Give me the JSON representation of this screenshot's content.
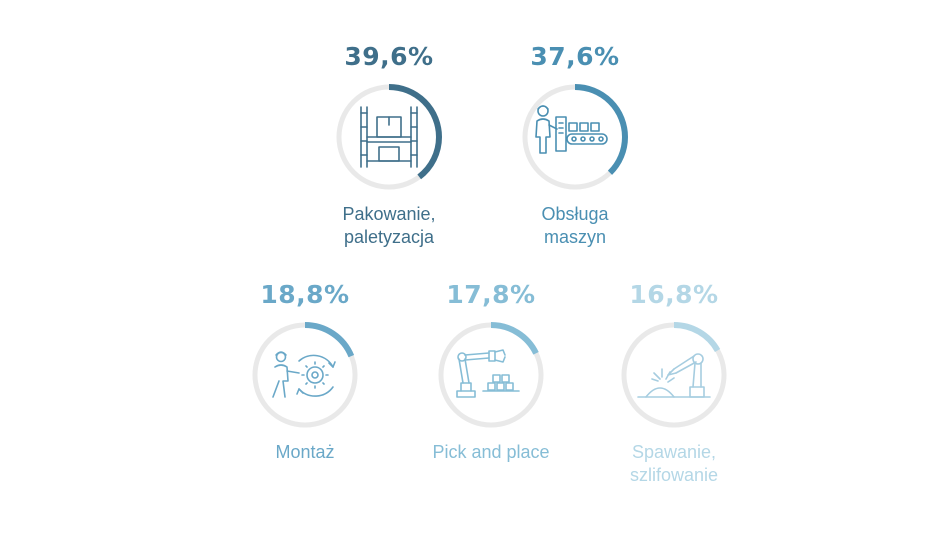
{
  "chart_data": {
    "type": "pie",
    "items": [
      {
        "value": 39.6,
        "value_label": "39,6%",
        "label_line1": "Pakowanie,",
        "label_line2": "paletyzacja",
        "color": "#3f6f8a",
        "icon": "pallet-rack-icon"
      },
      {
        "value": 37.6,
        "value_label": "37,6%",
        "label_line1": "Obsługa",
        "label_line2": "maszyn",
        "color": "#4a8fb2",
        "icon": "machine-operator-icon"
      },
      {
        "value": 18.8,
        "value_label": "18,8%",
        "label_line1": "Montaż",
        "label_line2": "",
        "color": "#6aa8c8",
        "icon": "assembly-worker-icon"
      },
      {
        "value": 17.8,
        "value_label": "17,8%",
        "label_line1": "Pick and place",
        "label_line2": "",
        "color": "#86bdd6",
        "icon": "robot-arm-pick-icon"
      },
      {
        "value": 16.8,
        "value_label": "16,8%",
        "label_line1": "Spawanie,",
        "label_line2": "szlifowanie",
        "color": "#b4d7e6",
        "icon": "welding-robot-icon"
      }
    ],
    "track_color": "#e9e9e9"
  }
}
